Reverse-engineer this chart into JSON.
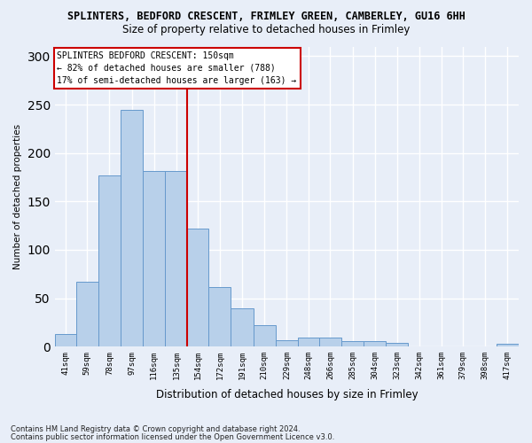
{
  "title": "SPLINTERS, BEDFORD CRESCENT, FRIMLEY GREEN, CAMBERLEY, GU16 6HH",
  "subtitle": "Size of property relative to detached houses in Frimley",
  "xlabel": "Distribution of detached houses by size in Frimley",
  "ylabel": "Number of detached properties",
  "bar_labels": [
    "41sqm",
    "59sqm",
    "78sqm",
    "97sqm",
    "116sqm",
    "135sqm",
    "154sqm",
    "172sqm",
    "191sqm",
    "210sqm",
    "229sqm",
    "248sqm",
    "266sqm",
    "285sqm",
    "304sqm",
    "323sqm",
    "342sqm",
    "361sqm",
    "379sqm",
    "398sqm",
    "417sqm"
  ],
  "bar_values": [
    13,
    67,
    177,
    245,
    181,
    181,
    122,
    62,
    40,
    22,
    7,
    9,
    9,
    6,
    6,
    4,
    0,
    0,
    0,
    0,
    3
  ],
  "bar_color": "#b8d0ea",
  "bar_edge_color": "#6699cc",
  "annotation_text_line1": "SPLINTERS BEDFORD CRESCENT: 150sqm",
  "annotation_text_line2": "← 82% of detached houses are smaller (788)",
  "annotation_text_line3": "17% of semi-detached houses are larger (163) →",
  "annotation_box_color": "#ffffff",
  "annotation_box_edge": "#cc0000",
  "vline_color": "#cc0000",
  "ylim": [
    0,
    310
  ],
  "yticks": [
    0,
    50,
    100,
    150,
    200,
    250,
    300
  ],
  "footer_line1": "Contains HM Land Registry data © Crown copyright and database right 2024.",
  "footer_line2": "Contains public sector information licensed under the Open Government Licence v3.0.",
  "bg_color": "#e8eef8",
  "plot_bg_color": "#e8eef8",
  "grid_color": "#ffffff",
  "bin_edges": [
    41,
    59,
    78,
    97,
    116,
    135,
    154,
    172,
    191,
    210,
    229,
    248,
    266,
    285,
    304,
    323,
    342,
    361,
    379,
    398,
    417,
    436
  ]
}
